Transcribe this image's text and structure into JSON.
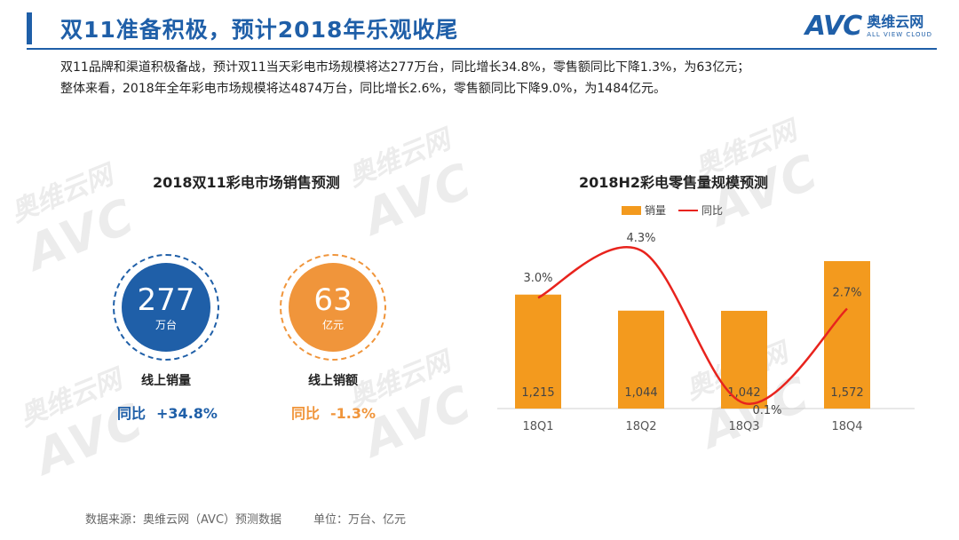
{
  "header": {
    "title": "双11准备积极，预计2018年乐观收尾",
    "logo_mark": "AVC",
    "logo_cn": "奥维云网",
    "logo_en": "ALL VIEW CLOUD"
  },
  "summary": {
    "line1": "双11品牌和渠道积极备战，预计双11当天彩电市场规模将达277万台，同比增长34.8%，零售额同比下降1.3%，为63亿元；",
    "line2": "整体来看，2018年全年彩电市场规模将达4874万台，同比增长2.6%，零售额同比下降9.0%，为1484亿元。"
  },
  "left_panel": {
    "title": "2018双11彩电市场销售预测",
    "volume": {
      "value": "277",
      "unit": "万台",
      "label": "线上销量",
      "yoy_label": "同比",
      "yoy_value": "+34.8%",
      "color": "#1f5fa8"
    },
    "revenue": {
      "value": "63",
      "unit": "亿元",
      "label": "线上销额",
      "yoy_label": "同比",
      "yoy_value": "-1.3%",
      "color": "#f0953b"
    }
  },
  "colors": {
    "brand_blue": "#1f5fa8",
    "bar_orange": "#f39a1e",
    "line_red": "#e8231d"
  },
  "chart_data": {
    "type": "bar",
    "title": "2018H2彩电零售量规模预测",
    "categories": [
      "18Q1",
      "18Q2",
      "18Q3",
      "18Q4"
    ],
    "series": [
      {
        "name": "销量",
        "type": "bar",
        "values": [
          1215,
          1044,
          1042,
          1572
        ],
        "labels": [
          "1,215",
          "1,044",
          "1,042",
          "1,572"
        ]
      },
      {
        "name": "同比",
        "type": "line",
        "values": [
          3.0,
          4.3,
          0.1,
          2.7
        ],
        "labels": [
          "3.0%",
          "4.3%",
          "0.1%",
          "2.7%"
        ],
        "smooth": true
      }
    ],
    "legend": "top",
    "grid": false
  },
  "footer": {
    "source": "数据来源：奥维云网（AVC）预测数据",
    "unit": "单位：万台、亿元"
  },
  "watermark": {
    "mark": "AVC",
    "cn": "奥维云网",
    "en": "ALL VIEW CLOUD"
  }
}
